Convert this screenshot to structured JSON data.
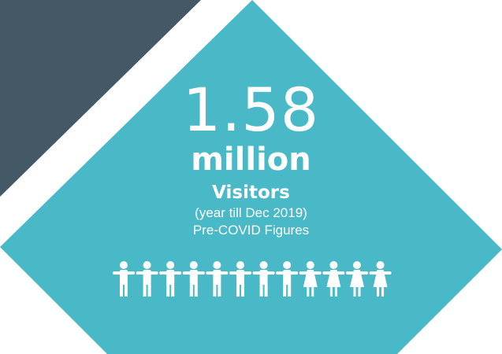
{
  "colors": {
    "background": "#ffffff",
    "dark_triangle": "#445866",
    "teal_diamond": "#49b9c8",
    "text": "#ffffff"
  },
  "stat": {
    "number": "1.58",
    "unit": "million",
    "label": "Visitors",
    "period": "(year till Dec 2019)",
    "note": "Pre-COVID Figures"
  },
  "icons": {
    "people": [
      "man-icon",
      "man-icon",
      "man-icon",
      "man-icon",
      "man-icon",
      "man-icon",
      "man-icon",
      "man-icon",
      "woman-icon",
      "woman-icon",
      "woman-icon",
      "woman-icon"
    ]
  }
}
